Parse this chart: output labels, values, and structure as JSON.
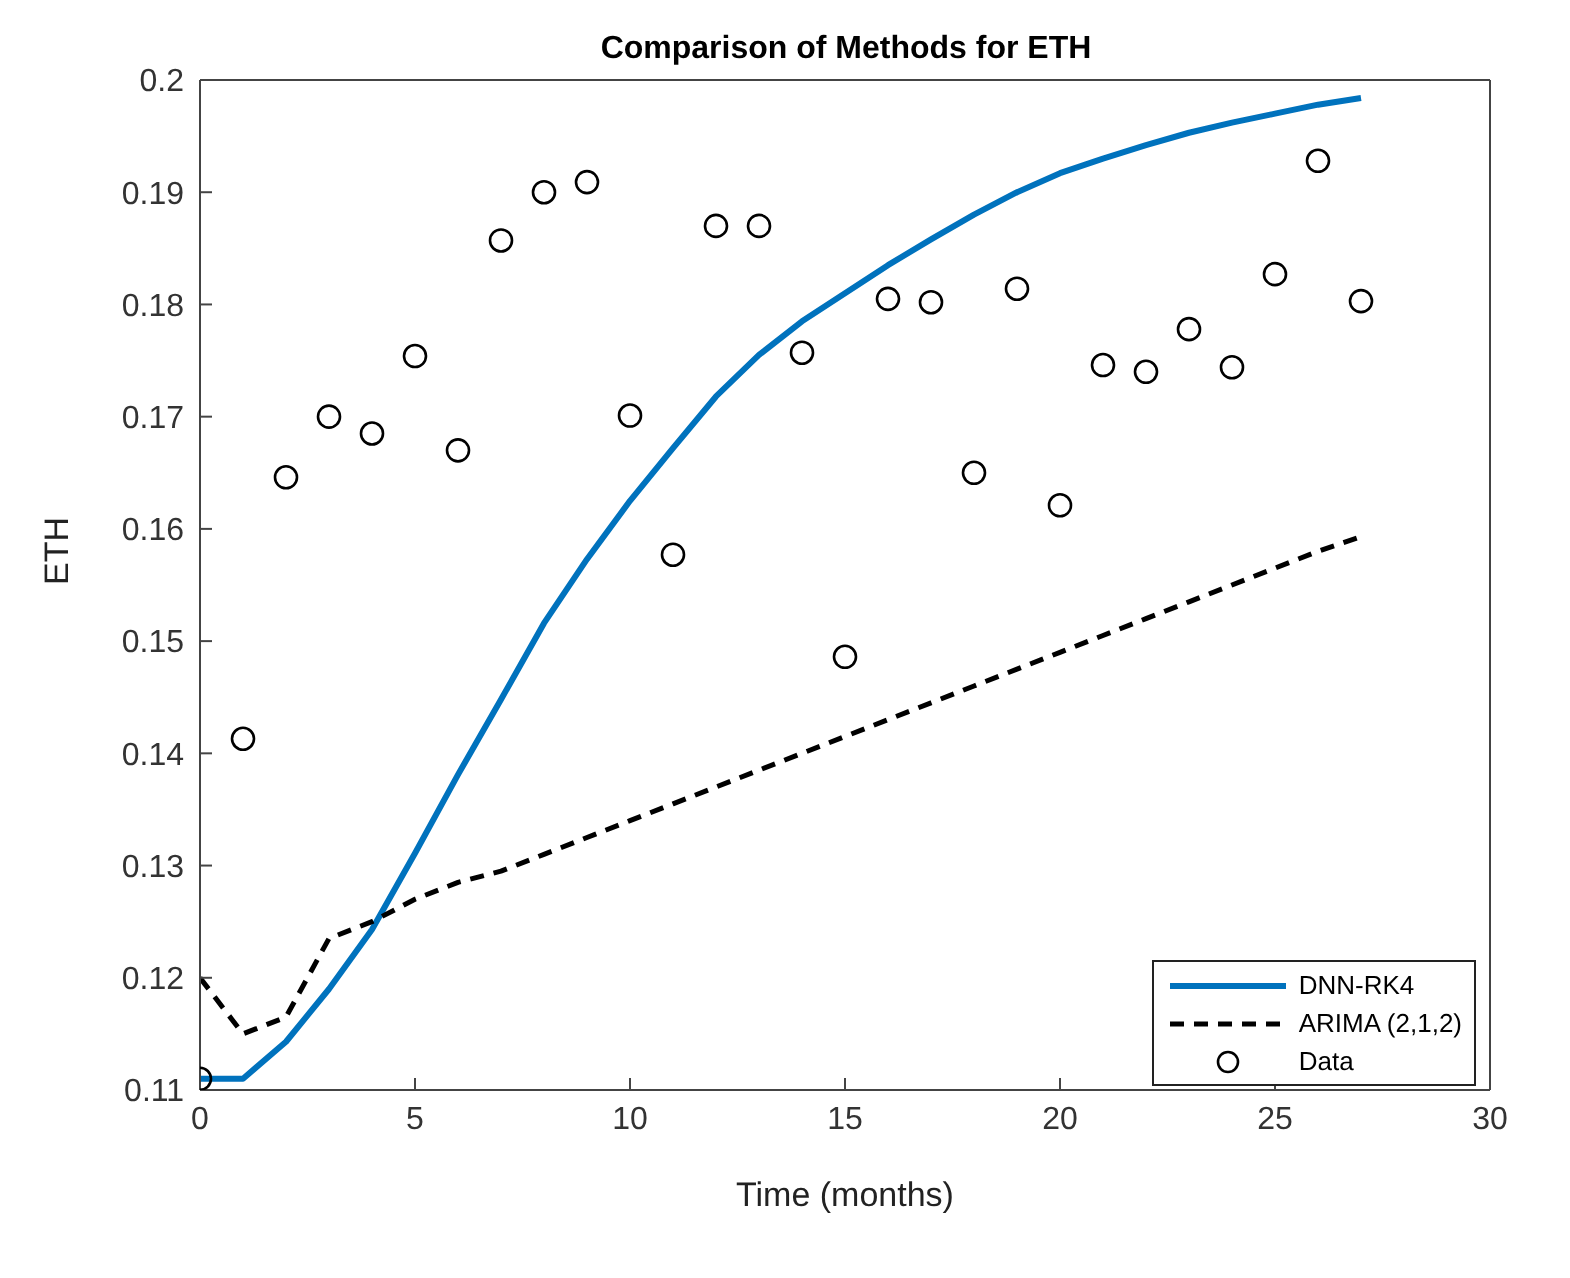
{
  "chart_data": {
    "type": "line",
    "title": "Comparison of Methods for ETH",
    "xlabel": "Time (months)",
    "ylabel": "ETH",
    "x": [
      0,
      1,
      2,
      3,
      4,
      5,
      6,
      7,
      8,
      9,
      10,
      11,
      12,
      13,
      14,
      15,
      16,
      17,
      18,
      19,
      20,
      21,
      22,
      23,
      24,
      25,
      26,
      27
    ],
    "series": [
      {
        "name": "DNN-RK4",
        "color": "#0072bd",
        "line_style": "solid",
        "marker": "none",
        "values": [
          0.111,
          0.111,
          0.1143,
          0.119,
          0.1243,
          0.1311,
          0.1381,
          0.1448,
          0.1516,
          0.1573,
          0.1625,
          0.1672,
          0.1718,
          0.1755,
          0.1785,
          0.181,
          0.1835,
          0.1858,
          0.188,
          0.19,
          0.1917,
          0.193,
          0.1942,
          0.1953,
          0.1962,
          0.197,
          0.1978,
          0.1984
        ]
      },
      {
        "name": "ARIMA (2,1,2)",
        "color": "#000000",
        "line_style": "dashed",
        "marker": "none",
        "values": [
          0.12,
          0.115,
          0.1165,
          0.1235,
          0.125,
          0.127,
          0.1285,
          0.1295,
          0.131,
          0.1325,
          0.134,
          0.1355,
          0.137,
          0.1385,
          0.14,
          0.1415,
          0.143,
          0.1445,
          0.146,
          0.1475,
          0.149,
          0.1505,
          0.152,
          0.1535,
          0.155,
          0.1565,
          0.158,
          0.1593
        ]
      },
      {
        "name": "Data",
        "type": "scatter",
        "color": "#000000",
        "marker": "circle",
        "values": [
          0.111,
          0.1413,
          0.1646,
          0.17,
          0.1685,
          0.1754,
          0.167,
          0.1857,
          0.19,
          0.1909,
          0.1701,
          0.1577,
          0.187,
          0.187,
          0.1757,
          0.1486,
          0.1805,
          0.1802,
          0.165,
          0.1814,
          0.1621,
          0.1746,
          0.174,
          0.1778,
          0.1744,
          0.1827,
          0.1928,
          0.1803
        ]
      }
    ],
    "xlim": [
      0,
      30
    ],
    "xticks": [
      0,
      5,
      10,
      15,
      20,
      25,
      30
    ],
    "ylim": [
      0.11,
      0.2
    ],
    "yticks": [
      0.11,
      0.12,
      0.13,
      0.14,
      0.15,
      0.16,
      0.17,
      0.18,
      0.19,
      0.2
    ],
    "grid": false,
    "legend": "bottom right"
  }
}
